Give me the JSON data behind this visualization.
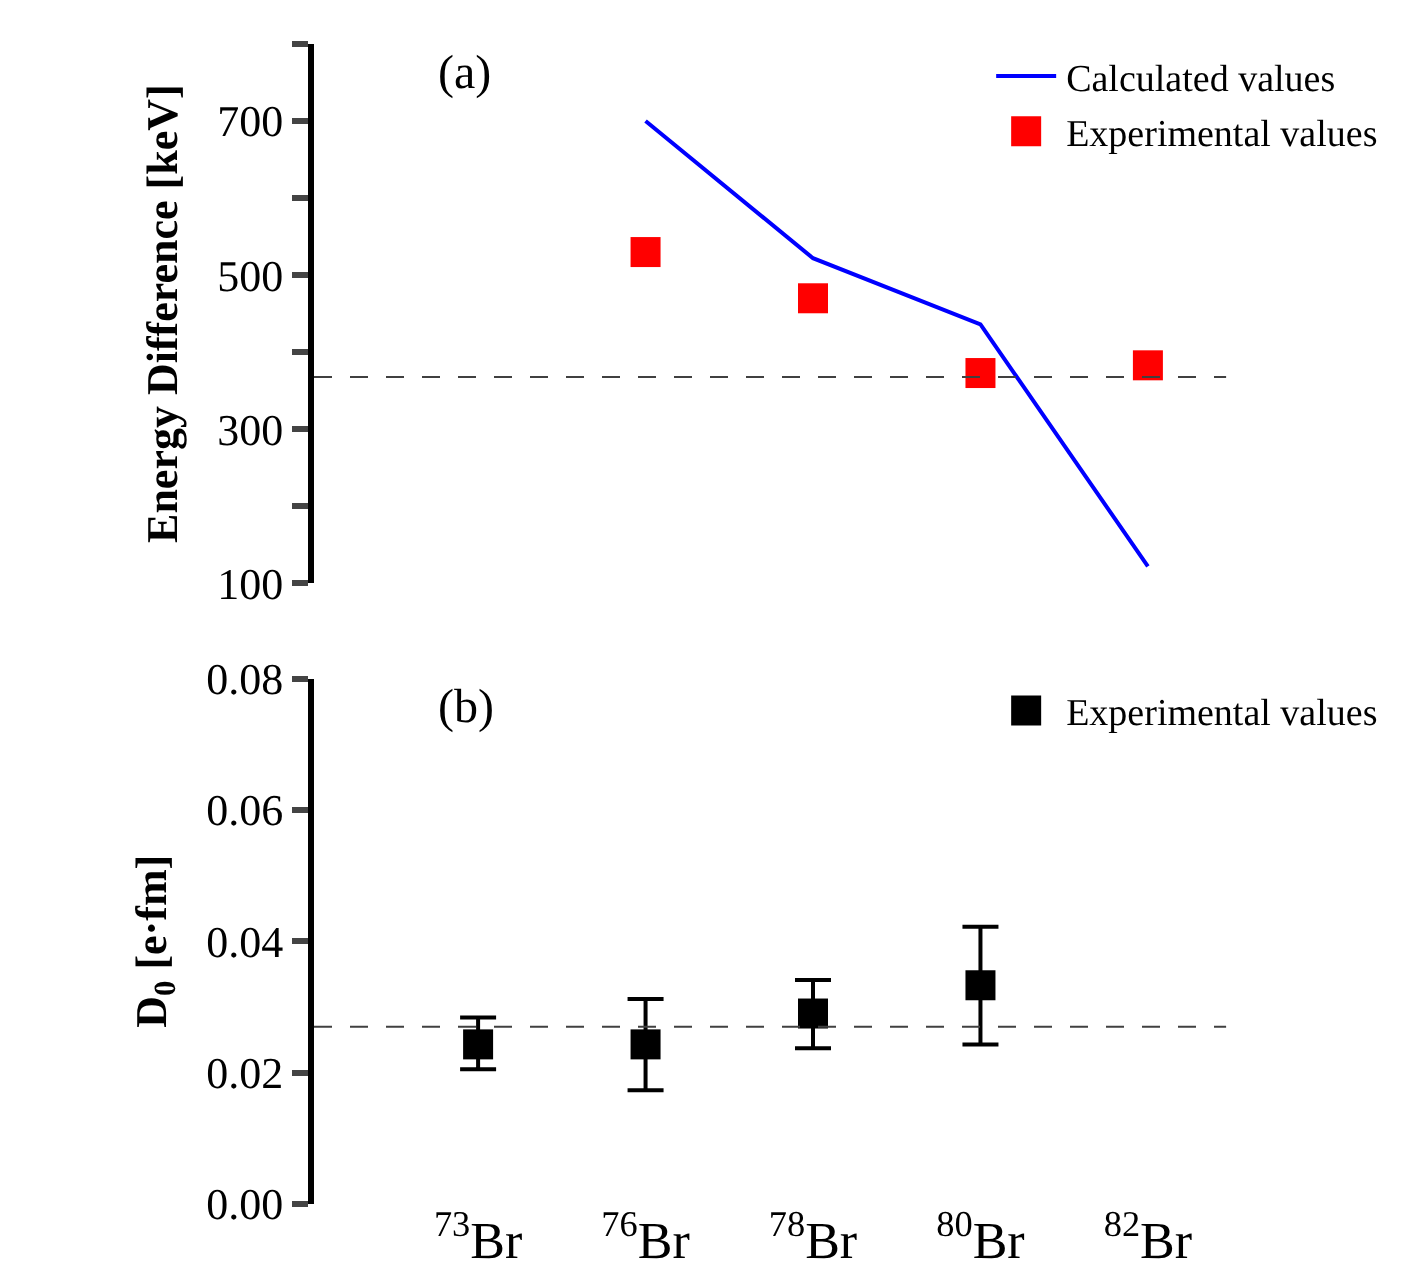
{
  "chart_data": [
    {
      "type": "scatter",
      "ylabel": "Energy Difference [keV]",
      "annotations": [
        "(a)"
      ],
      "categories": [
        "$^{73}$Br",
        "$^{76}$Br",
        "$^{78}$Br",
        "$^{80}$Br",
        "$^{82}$Br"
      ],
      "series": [
        {
          "name": "Calculated values",
          "type": "line",
          "color": "#0000ff",
          "line_style": "solid",
          "values": [
            null,
            700,
            522,
            436,
            122
          ]
        },
        {
          "name": "Experimental values",
          "type": "scatter",
          "color": "#ff0000",
          "marker": "square",
          "values": [
            null,
            530,
            470,
            373,
            383
          ]
        }
      ],
      "ylim": [
        100,
        800
      ],
      "yticks": [
        100,
        {
          "value": 200,
          "label": null
        },
        300,
        {
          "value": 400,
          "label": null
        },
        500,
        {
          "value": 600,
          "label": null
        },
        700,
        {
          "value": 800,
          "label": null
        }
      ],
      "ref_lines": [
        {
          "axis": "y",
          "value": 368,
          "color": "#404040",
          "line_style": "dashed"
        }
      ],
      "tick_labels": "y",
      "grid": false,
      "legend": "top right"
    },
    {
      "type": "scatter",
      "ylabel": "D$_{0}$ [e·fm]",
      "annotations": [
        "(b)"
      ],
      "categories": [
        "$^{73}$Br",
        "$^{76}$Br",
        "$^{78}$Br",
        "$^{80}$Br",
        "$^{82}$Br"
      ],
      "series": [
        {
          "name": "Experimental values",
          "type": "scatter",
          "color": "#000000",
          "marker": "square",
          "values": [
            0.0243,
            0.0243,
            0.029,
            0.0333,
            null
          ],
          "errors": [
            [
              0.0205,
              0.0284
            ],
            [
              0.0173,
              0.0312
            ],
            [
              0.0237,
              0.0341
            ],
            [
              0.0243,
              0.0422
            ],
            null
          ]
        }
      ],
      "ylim": [
        0,
        0.08
      ],
      "yticks": [
        {
          "value": 0,
          "label": "0.00"
        },
        0.02,
        0.04,
        0.06,
        0.08
      ],
      "ref_lines": [
        {
          "axis": "y",
          "value": 0.027,
          "color": "#404040",
          "line_style": "dashed"
        }
      ],
      "grid": false,
      "legend": "top right"
    }
  ]
}
